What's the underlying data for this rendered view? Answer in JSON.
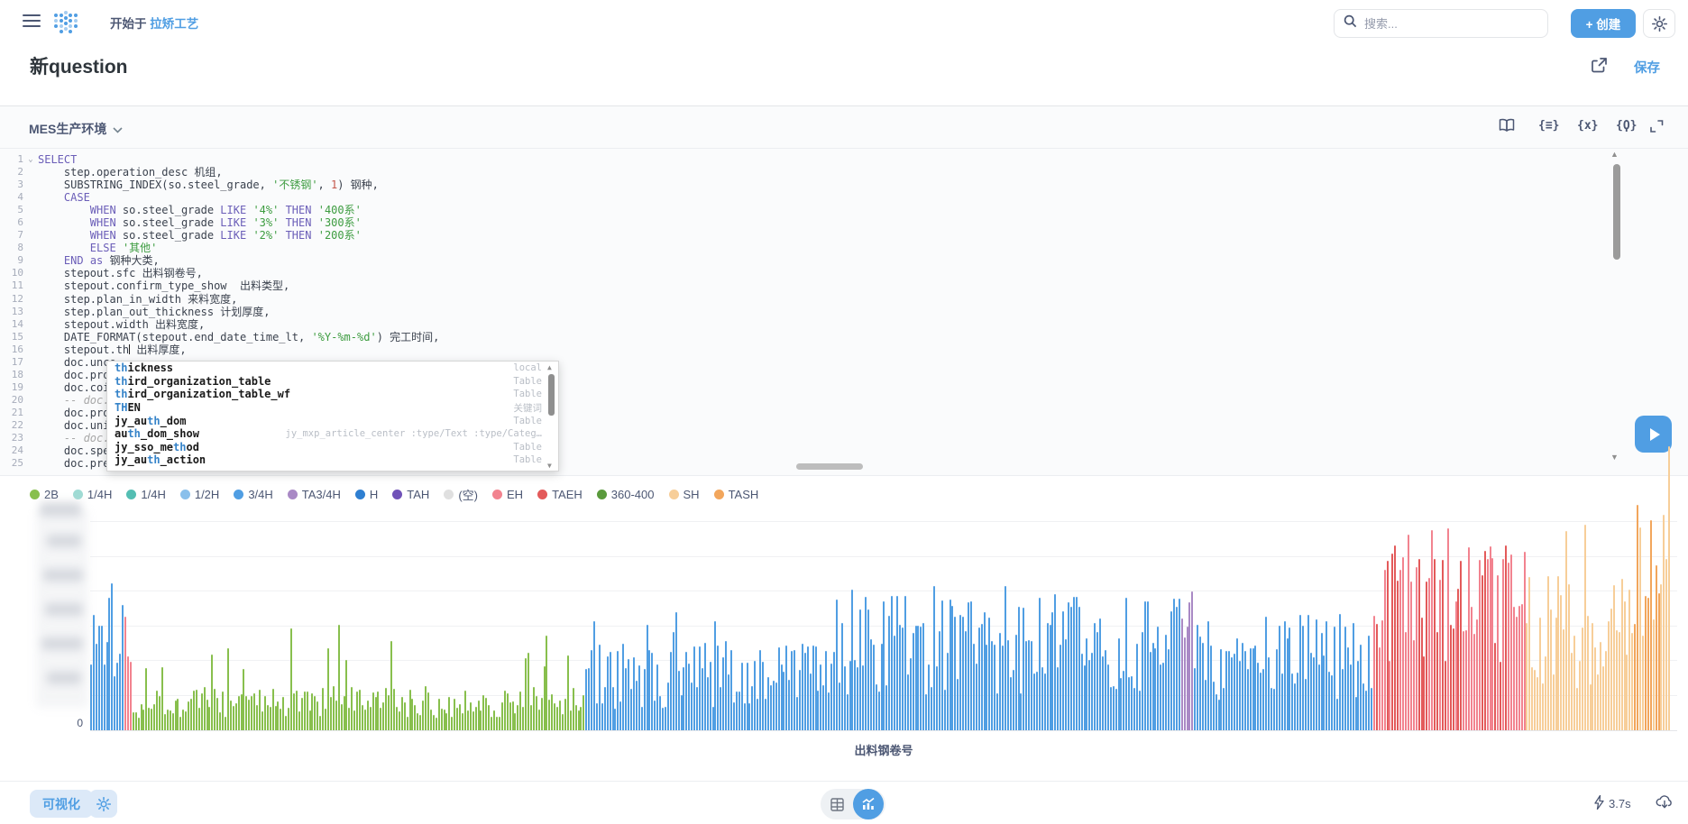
{
  "header": {
    "breadcrumb_prefix": "开始于",
    "breadcrumb_link": "拉矫工艺",
    "search_placeholder": "搜索...",
    "create_label": "+ 创建"
  },
  "title_bar": {
    "title": "新question",
    "save_label": "保存"
  },
  "editor": {
    "database_name": "MES生产环境",
    "toolbar_icon_glyphs": {
      "snippet": "{≡}",
      "variable": "{x}",
      "parameter": "{Ϙ}"
    },
    "lines": [
      [
        [
          "kw",
          "SELECT"
        ]
      ],
      [
        [
          "",
          "    step.operation_desc 机组,"
        ]
      ],
      [
        [
          "",
          "    SUBSTRING_INDEX(so.steel_grade, "
        ],
        [
          "str",
          "'不锈钢'"
        ],
        [
          "",
          ", "
        ],
        [
          "num",
          "1"
        ],
        [
          "",
          ") 钢种,"
        ]
      ],
      [
        [
          "",
          "    "
        ],
        [
          "kw",
          "CASE"
        ]
      ],
      [
        [
          "",
          "        "
        ],
        [
          "kw",
          "WHEN"
        ],
        [
          "",
          " so.steel_grade "
        ],
        [
          "kw",
          "LIKE"
        ],
        [
          "",
          " "
        ],
        [
          "str",
          "'4%'"
        ],
        [
          "",
          " "
        ],
        [
          "kw",
          "THEN"
        ],
        [
          "",
          " "
        ],
        [
          "str",
          "'400系'"
        ]
      ],
      [
        [
          "",
          "        "
        ],
        [
          "kw",
          "WHEN"
        ],
        [
          "",
          " so.steel_grade "
        ],
        [
          "kw",
          "LIKE"
        ],
        [
          "",
          " "
        ],
        [
          "str",
          "'3%'"
        ],
        [
          "",
          " "
        ],
        [
          "kw",
          "THEN"
        ],
        [
          "",
          " "
        ],
        [
          "str",
          "'300系'"
        ]
      ],
      [
        [
          "",
          "        "
        ],
        [
          "kw",
          "WHEN"
        ],
        [
          "",
          " so.steel_grade "
        ],
        [
          "kw",
          "LIKE"
        ],
        [
          "",
          " "
        ],
        [
          "str",
          "'2%'"
        ],
        [
          "",
          " "
        ],
        [
          "kw",
          "THEN"
        ],
        [
          "",
          " "
        ],
        [
          "str",
          "'200系'"
        ]
      ],
      [
        [
          "",
          "        "
        ],
        [
          "kw",
          "ELSE"
        ],
        [
          "",
          " "
        ],
        [
          "str",
          "'其他'"
        ]
      ],
      [
        [
          "",
          "    "
        ],
        [
          "kw",
          "END"
        ],
        [
          "",
          " "
        ],
        [
          "kw",
          "as"
        ],
        [
          "",
          " 钢种大类,"
        ]
      ],
      [
        [
          "",
          "    stepout.sfc 出料钢卷号,"
        ]
      ],
      [
        [
          "",
          "    stepout.confirm_type_show  出料类型,"
        ]
      ],
      [
        [
          "",
          "    step.plan_in_width 来料宽度,"
        ]
      ],
      [
        [
          "",
          "    step.plan_out_thickness 计划厚度,"
        ]
      ],
      [
        [
          "",
          "    stepout.width 出料宽度,"
        ]
      ],
      [
        [
          "",
          "    DATE_FORMAT(stepout.end_date_time_lt, "
        ],
        [
          "str",
          "'%Y-%m-%d'"
        ],
        [
          "",
          ") 完工时间,"
        ]
      ],
      [
        [
          "",
          "    stepout.th"
        ],
        [
          "cur",
          ""
        ],
        [
          "",
          " 出料厚度,"
        ]
      ],
      [
        [
          "",
          "    doc.unco"
        ]
      ],
      [
        [
          "",
          "    doc.proc"
        ]
      ],
      [
        [
          "",
          "    doc.coil"
        ]
      ],
      [
        [
          "com",
          "    -- doc.u"
        ]
      ],
      [
        [
          "",
          "    doc.proc"
        ]
      ],
      [
        [
          "",
          "    doc.unit"
        ]
      ],
      [
        [
          "com",
          "    -- doc.c"
        ]
      ],
      [
        [
          "",
          "    doc.spee"
        ]
      ],
      [
        [
          "",
          "    doc.pres"
        ]
      ]
    ],
    "autocomplete": {
      "items": [
        {
          "parts": [
            [
              "m",
              "th"
            ],
            [
              "",
              "ickness"
            ]
          ],
          "desc": "",
          "meta": "local"
        },
        {
          "parts": [
            [
              "m",
              "th"
            ],
            [
              "",
              "ird_organization_table"
            ]
          ],
          "desc": "",
          "meta": "Table"
        },
        {
          "parts": [
            [
              "m",
              "th"
            ],
            [
              "",
              "ird_organization_table_wf"
            ]
          ],
          "desc": "",
          "meta": "Table"
        },
        {
          "parts": [
            [
              "m",
              "TH"
            ],
            [
              "",
              "EN"
            ]
          ],
          "desc": "",
          "meta": "关键词"
        },
        {
          "parts": [
            [
              "",
              "jy_au"
            ],
            [
              "m",
              "th"
            ],
            [
              "",
              "_dom"
            ]
          ],
          "desc": "",
          "meta": "Table"
        },
        {
          "parts": [
            [
              "",
              "au"
            ],
            [
              "m",
              "th"
            ],
            [
              "",
              "_dom_show"
            ]
          ],
          "desc": "jy_mxp_article_center :type/Text :type/Categ…",
          "meta": ""
        },
        {
          "parts": [
            [
              "",
              "jy_sso_me"
            ],
            [
              "m",
              "th"
            ],
            [
              "",
              "od"
            ]
          ],
          "desc": "",
          "meta": "Table"
        },
        {
          "parts": [
            [
              "",
              "jy_au"
            ],
            [
              "m",
              "th"
            ],
            [
              "",
              "_action"
            ]
          ],
          "desc": "",
          "meta": "Table"
        }
      ]
    }
  },
  "chart_data": {
    "type": "bar",
    "title": "",
    "xlabel": "出料钢卷号",
    "ylabel": "",
    "x_axis_note": "hundreds of individual steel-coil serial numbers; tick labels not rendered",
    "y_axis": {
      "min": 0,
      "visible_tick_label": "0",
      "other_tick_labels_obscured_by_blur": true,
      "gridlines": true
    },
    "legend_position": "top-left",
    "legend": [
      {
        "label": "2B",
        "color": "#88BF4D"
      },
      {
        "label": "1/4H",
        "color": "#9FDBD4"
      },
      {
        "label": "1/4H",
        "color": "#54BEB3"
      },
      {
        "label": "1/2H",
        "color": "#8AC0EB"
      },
      {
        "label": "3/4H",
        "color": "#509EE3"
      },
      {
        "label": "TA3/4H",
        "color": "#A989C5"
      },
      {
        "label": "H",
        "color": "#2E7FD1"
      },
      {
        "label": "TAH",
        "color": "#7052B8"
      },
      {
        "label": "(空)",
        "color": "#E0E0E0"
      },
      {
        "label": "EH",
        "color": "#F2838F"
      },
      {
        "label": "TAEH",
        "color": "#E35A5A"
      },
      {
        "label": "360-400",
        "color": "#5A9A3C"
      },
      {
        "label": "SH",
        "color": "#F7CE99"
      },
      {
        "label": "TASH",
        "color": "#F2A65C"
      }
    ],
    "series_segments_note": "per-bar values unreadable at source resolution; segments approximate color runs and height ranges (fractions of plot height) from left to right",
    "series_segments": [
      {
        "label": "3/4H",
        "color": "#509EE3",
        "count": 13,
        "min": 0.15,
        "max": 0.52,
        "spike_chance": 0.18,
        "spike_min": 0.58,
        "spike_max": 0.74
      },
      {
        "label": "EH",
        "color": "#F2838F",
        "count": 3,
        "min": 0.2,
        "max": 0.45,
        "spike_chance": 0,
        "spike_min": 0,
        "spike_max": 0
      },
      {
        "label": "2B",
        "color": "#88BF4D",
        "count": 172,
        "min": 0.04,
        "max": 0.15,
        "spike_chance": 0.06,
        "spike_min": 0.18,
        "spike_max": 0.38
      },
      {
        "label": "3/4H",
        "color": "#509EE3",
        "count": 88,
        "min": 0.07,
        "max": 0.3,
        "spike_chance": 0.05,
        "spike_min": 0.3,
        "spike_max": 0.42
      },
      {
        "label": "3/4H",
        "color": "#509EE3",
        "count": 138,
        "min": 0.12,
        "max": 0.46,
        "spike_chance": 0.04,
        "spike_min": 0.44,
        "spike_max": 0.5
      },
      {
        "label": "TA3/4H",
        "color": "#A989C5",
        "count": 5,
        "min": 0.28,
        "max": 0.48,
        "spike_chance": 0,
        "spike_min": 0,
        "spike_max": 0
      },
      {
        "label": "3/4H",
        "color": "#509EE3",
        "count": 68,
        "min": 0.1,
        "max": 0.4,
        "spike_chance": 0,
        "spike_min": 0,
        "spike_max": 0
      },
      {
        "label": "EH",
        "color": "#F2838F",
        "alt_color": "#E35A5A",
        "alt_chance": 0.25,
        "count": 58,
        "min": 0.22,
        "max": 0.62,
        "spike_chance": 0.1,
        "spike_min": 0.55,
        "spike_max": 0.68
      },
      {
        "label": "SH",
        "color": "#F7CE99",
        "count": 40,
        "min": 0.1,
        "max": 0.52,
        "spike_chance": 0.08,
        "spike_min": 0.5,
        "spike_max": 0.72
      },
      {
        "label": "TASH",
        "color": "#F2A65C",
        "alt_color": "#F7CE99",
        "alt_chance": 0.35,
        "count": 15,
        "min": 0.3,
        "max": 0.97,
        "spike_chance": 0,
        "spike_min": 0,
        "spike_max": 0
      }
    ]
  },
  "footer": {
    "visualize_label": "可视化",
    "duration": "3.7s"
  }
}
